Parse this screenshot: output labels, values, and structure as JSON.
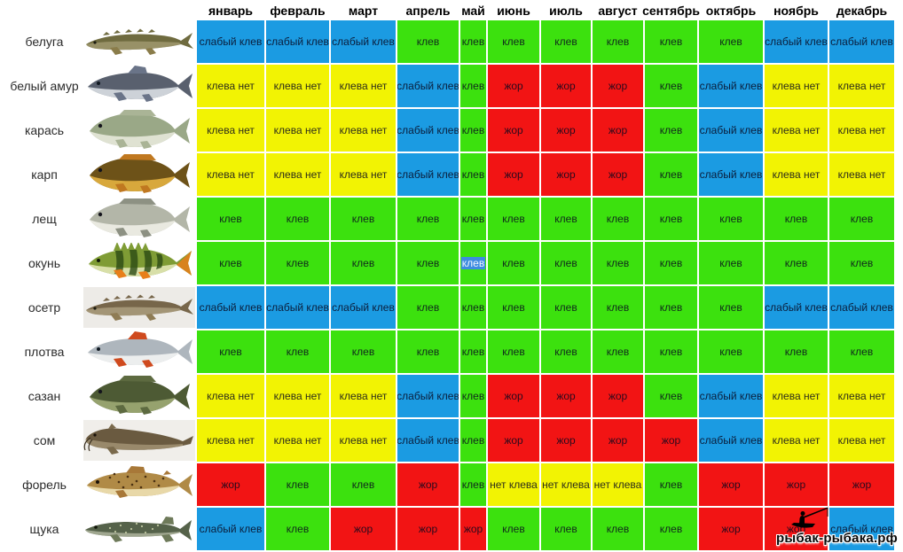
{
  "months": [
    "январь",
    "февраль",
    "март",
    "апрель",
    "май",
    "июнь",
    "июль",
    "август",
    "сентябрь",
    "октябрь",
    "ноябрь",
    "декабрь"
  ],
  "statuses": {
    "slaby": {
      "label": "слабый клев",
      "color": "#1b9be2"
    },
    "klev": {
      "label": "клев",
      "color": "#3ce10e"
    },
    "zhor": {
      "label": "жор",
      "color": "#f21414"
    },
    "net": {
      "label": "клева нет",
      "color": "#f2f303"
    },
    "net2": {
      "label": "нет клева",
      "color": "#f2f303"
    }
  },
  "highlight": {
    "fish_index": 5,
    "month_index": 4,
    "color": "#3d8ce0",
    "text_color": "#f0f6ff"
  },
  "watermark": {
    "text": "рыбак-рыбака.рф",
    "icon": "fisherman-boat-icon"
  },
  "fish": [
    {
      "name": "белуга",
      "icon": {
        "type": "sturgeon",
        "body": "#6f6b3f",
        "belly": "#b9b189",
        "fins": "#8a7c4a"
      },
      "cells": [
        "slaby",
        "slaby",
        "slaby",
        "klev",
        "klev",
        "klev",
        "klev",
        "klev",
        "klev",
        "klev",
        "slaby",
        "slaby"
      ]
    },
    {
      "name": "белый амур",
      "icon": {
        "type": "torpedo",
        "body": "#59606e",
        "belly": "#cdd2d8",
        "fins": "#6a7488"
      },
      "cells": [
        "net",
        "net",
        "net",
        "slaby",
        "klev",
        "zhor",
        "zhor",
        "zhor",
        "klev",
        "slaby",
        "net",
        "net"
      ]
    },
    {
      "name": "карась",
      "icon": {
        "type": "deep",
        "body": "#9aa887",
        "belly": "#dfe2d2",
        "fins": "#aab496"
      },
      "cells": [
        "net",
        "net",
        "net",
        "slaby",
        "klev",
        "zhor",
        "zhor",
        "zhor",
        "klev",
        "slaby",
        "net",
        "net"
      ]
    },
    {
      "name": "карп",
      "icon": {
        "type": "deep",
        "body": "#6d5218",
        "belly": "#d8a83c",
        "fins": "#c07820"
      },
      "cells": [
        "net",
        "net",
        "net",
        "slaby",
        "klev",
        "zhor",
        "zhor",
        "zhor",
        "klev",
        "slaby",
        "net",
        "net"
      ]
    },
    {
      "name": "лещ",
      "icon": {
        "type": "deep",
        "body": "#b3b6a8",
        "belly": "#e9e9e0",
        "fins": "#8d9183"
      },
      "cells": [
        "klev",
        "klev",
        "klev",
        "klev",
        "klev",
        "klev",
        "klev",
        "klev",
        "klev",
        "klev",
        "klev",
        "klev"
      ]
    },
    {
      "name": "окунь",
      "icon": {
        "type": "perch",
        "body": "#7f9c35",
        "belly": "#d8dfa8",
        "fins": "#e87f1a",
        "stripes": "#2c4a14"
      },
      "cells": [
        "klev",
        "klev",
        "klev",
        "klev",
        "klev",
        "klev",
        "klev",
        "klev",
        "klev",
        "klev",
        "klev",
        "klev"
      ]
    },
    {
      "name": "осетр",
      "icon": {
        "type": "sturgeon",
        "body": "#77664a",
        "belly": "#c9bc9a",
        "fins": "#8f7c55",
        "bg": "#edebe7"
      },
      "cells": [
        "slaby",
        "slaby",
        "slaby",
        "klev",
        "klev",
        "klev",
        "klev",
        "klev",
        "klev",
        "klev",
        "slaby",
        "slaby"
      ]
    },
    {
      "name": "плотва",
      "icon": {
        "type": "torpedo",
        "body": "#aeb6bd",
        "belly": "#eceeee",
        "fins": "#cf4a1e"
      },
      "cells": [
        "klev",
        "klev",
        "klev",
        "klev",
        "klev",
        "klev",
        "klev",
        "klev",
        "klev",
        "klev",
        "klev",
        "klev"
      ]
    },
    {
      "name": "сазан",
      "icon": {
        "type": "deep",
        "body": "#4d5a34",
        "belly": "#96a26e",
        "fins": "#5d6a40"
      },
      "cells": [
        "net",
        "net",
        "net",
        "slaby",
        "klev",
        "zhor",
        "zhor",
        "zhor",
        "klev",
        "slaby",
        "net",
        "net"
      ]
    },
    {
      "name": "сом",
      "icon": {
        "type": "catfish",
        "body": "#6a5a40",
        "belly": "#b9a888",
        "fins": "#7a6a4c",
        "bg": "#f0eeea"
      },
      "cells": [
        "net",
        "net",
        "net",
        "slaby",
        "klev",
        "zhor",
        "zhor",
        "zhor",
        "zhor",
        "slaby",
        "net",
        "net"
      ]
    },
    {
      "name": "форель",
      "icon": {
        "type": "trout",
        "body": "#b08a46",
        "belly": "#e8d8a8",
        "fins": "#a87838",
        "spots": "#4a3012"
      },
      "cells": [
        "zhor",
        "klev",
        "klev",
        "zhor",
        "klev",
        "net2",
        "net2",
        "net2",
        "klev",
        "zhor",
        "zhor",
        "zhor"
      ]
    },
    {
      "name": "щука",
      "icon": {
        "type": "pike",
        "body": "#55624a",
        "belly": "#c0c4ae",
        "fins": "#6e7a5a",
        "spots": "#c9d0a9"
      },
      "cells": [
        "slaby",
        "klev",
        "zhor",
        "zhor",
        "zhor",
        "klev",
        "klev",
        "klev",
        "klev",
        "zhor",
        "zhor",
        "slaby"
      ]
    }
  ]
}
